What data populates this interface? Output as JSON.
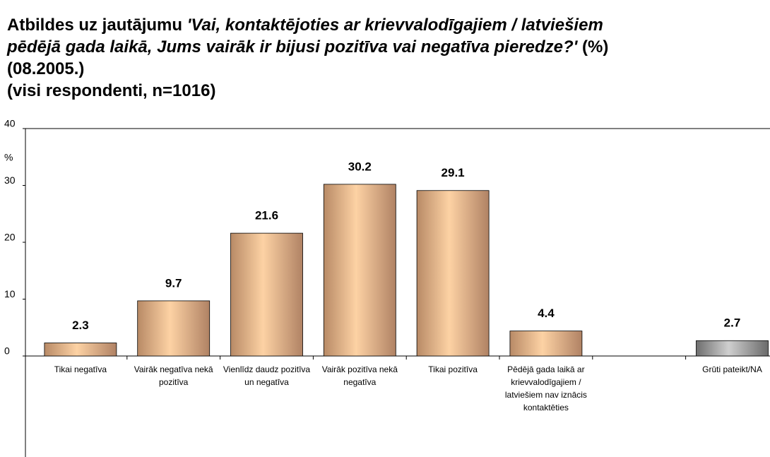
{
  "chart_data": {
    "type": "bar",
    "title": {
      "lead": "Atbildes uz jautājumu ",
      "question": "'Vai, kontaktējoties ar krievvalodīgajiem / latviešiem pēdējā gada laikā, Jums vairāk ir bijusi pozitīva vai negatīva pieredze?'",
      "tail": " (%) (08.2005.)"
    },
    "subtitle": "(visi respondenti, n=1016)",
    "y_label": "%",
    "categories": [
      "Tikai negatīva",
      "Vairāk negatīva nekā pozitīva",
      "Vienlīdz daudz pozitīva un negatīva",
      "Vairāk pozitīva nekā negatīva",
      "Tikai pozitīva",
      "Pēdējā gada laikā ar krievvalodīgajiem / latviešiem nav iznācis kontaktēties",
      null,
      "Grūti pateikt/NA"
    ],
    "values": [
      2.3,
      9.7,
      21.6,
      30.2,
      29.1,
      4.4,
      null,
      2.7
    ],
    "colors": [
      "tan",
      "tan",
      "tan",
      "tan",
      "tan",
      "tan",
      null,
      "gray"
    ],
    "ylim": [
      0,
      40
    ],
    "yticks": [
      0,
      10,
      20,
      30,
      40
    ]
  }
}
